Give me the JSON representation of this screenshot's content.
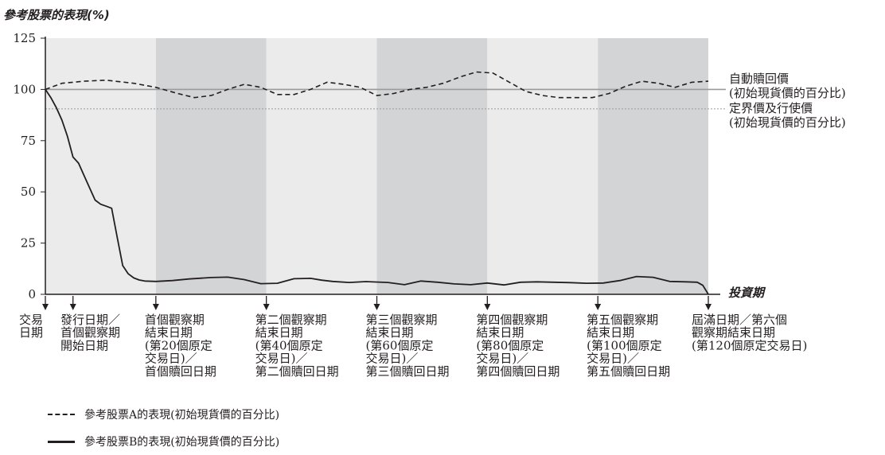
{
  "chart_data": {
    "type": "line",
    "ylabel": "參考股票的表現(%)",
    "xlabel": "投資期",
    "ylim": [
      0,
      125
    ],
    "yticks": [
      0,
      25,
      50,
      75,
      100,
      125
    ],
    "reference_lines": [
      {
        "name": "autocall",
        "value": 100,
        "label": [
          "自動贖回價",
          "(初始現貨價的百分比)"
        ]
      },
      {
        "name": "barrier",
        "value": 90.5,
        "label": [
          "定界價及行使價",
          "(初始現貨價的百分比)"
        ]
      }
    ],
    "period_markers": [
      {
        "x": 0,
        "label": [
          "交易",
          "日期"
        ]
      },
      {
        "x": 5,
        "label": [
          "發行日期／",
          "首個觀察期",
          "開始日期"
        ]
      },
      {
        "x": 20,
        "label": [
          "首個觀察期",
          "結束日期",
          "(第20個原定",
          "交易日)／",
          "首個贖回日期"
        ]
      },
      {
        "x": 40,
        "label": [
          "第二個觀察期",
          "結束日期",
          "(第40個原定",
          "交易日)／",
          "第二個贖回日期"
        ]
      },
      {
        "x": 60,
        "label": [
          "第三個觀察期",
          "結束日期",
          "(第60個原定",
          "交易日)／",
          "第三個贖回日期"
        ]
      },
      {
        "x": 80,
        "label": [
          "第四個觀察期",
          "結束日期",
          "(第80個原定",
          "交易日)／",
          "第四個贖回日期"
        ]
      },
      {
        "x": 100,
        "label": [
          "第五個觀察期",
          "結束日期",
          "(第100個原定",
          "交易日)／",
          "第五個贖回日期"
        ]
      },
      {
        "x": 120,
        "label": [
          "屆滿日期／第六個",
          "觀察期結束日期",
          "(第120個原定交易日)"
        ]
      }
    ],
    "series": [
      {
        "name": "參考股票A的表現(初始現貨價的百分比)",
        "style": "dashed",
        "x": [
          0,
          3,
          7,
          11,
          16,
          20,
          24,
          27,
          30,
          33,
          36,
          39,
          42,
          45,
          48,
          51,
          54,
          57,
          60,
          63,
          66,
          69,
          72,
          75,
          78,
          81,
          84,
          87,
          90,
          93,
          96,
          99,
          102,
          105,
          108,
          111,
          114,
          117,
          120
        ],
        "values": [
          100,
          103,
          104,
          104.5,
          103,
          101,
          98,
          96,
          97,
          100,
          102.5,
          101,
          97.5,
          97.5,
          100,
          103.5,
          102.5,
          101,
          97,
          98,
          100,
          101,
          103,
          106,
          108.5,
          108,
          103.5,
          99,
          97,
          96,
          96,
          96,
          98,
          101.5,
          104,
          103,
          101,
          103.5,
          104
        ]
      },
      {
        "name": "參考股票B的表現(初始現貨價的百分比)",
        "style": "solid",
        "x": [
          0,
          1,
          2,
          3,
          4,
          5,
          6,
          7,
          8,
          9,
          10,
          11,
          12,
          13,
          14,
          15,
          16,
          17,
          18,
          20,
          23,
          26,
          30,
          33,
          36,
          39,
          42,
          45,
          48,
          50,
          52,
          55,
          58,
          62,
          65,
          68,
          71,
          74,
          77,
          80,
          83,
          86,
          89,
          92,
          95,
          98,
          101,
          104,
          107,
          110,
          113,
          116,
          118,
          119,
          120
        ],
        "values": [
          100,
          96,
          91,
          85,
          77,
          67,
          64,
          58,
          52,
          46,
          44,
          43,
          42,
          28,
          14,
          10,
          8,
          7,
          6.5,
          6.3,
          6.7,
          7.5,
          8.2,
          8.4,
          7.2,
          5.2,
          5.4,
          7.6,
          7.8,
          6.9,
          6.3,
          5.8,
          6.2,
          5.8,
          4.7,
          6.5,
          5.9,
          5.1,
          4.7,
          5.5,
          4.6,
          5.9,
          6.1,
          5.9,
          5.7,
          5.4,
          5.5,
          6.7,
          8.7,
          8.3,
          6.3,
          6.1,
          5.9,
          4.4,
          0
        ]
      }
    ]
  }
}
